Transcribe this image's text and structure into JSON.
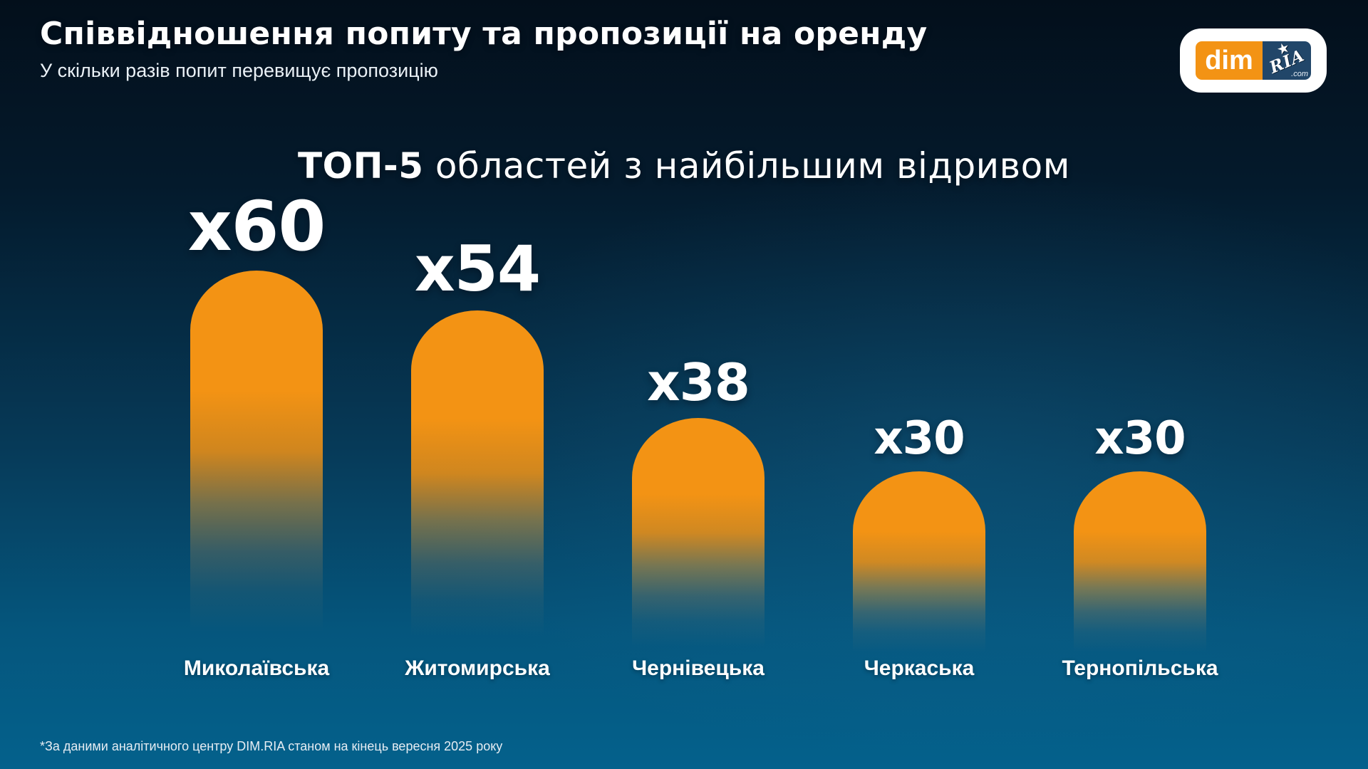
{
  "header": {
    "title": "Співвідношення попиту та пропозиції на оренду",
    "subtitle": "У скільки разів попит перевищує пропозицію"
  },
  "logo": {
    "dim": "dim",
    "ria": "RIA",
    "com": ".com",
    "star": "★"
  },
  "chart": {
    "title_highlight": "ТОП-5",
    "title_rest": " областей з найбільшим відривом"
  },
  "chart_data": {
    "type": "bar",
    "title": "ТОП-5 областей з найбільшим відривом",
    "categories": [
      "Миколаївська",
      "Житомирська",
      "Чернівецька",
      "Черкаська",
      "Тернопільська"
    ],
    "values": [
      60,
      54,
      38,
      30,
      30
    ],
    "value_labels": [
      "x60",
      "x54",
      "x38",
      "x30",
      "x30"
    ],
    "xlabel": "",
    "ylabel": "У скільки разів попит перевищує пропозицію",
    "ylim": [
      0,
      60
    ],
    "grid": false,
    "legend": false,
    "bar_color": "#F39314",
    "bar_style": "rounded-top, fading to background at bottom"
  },
  "footer": {
    "note": "*За даними аналітичного центру DIM.RIA станом на кінець вересня 2025 року"
  },
  "colors": {
    "orange": "#F39314",
    "background_top": "#030F1B",
    "background_bottom": "#04618C",
    "ria_navy": "#214669",
    "text": "#FFFFFF"
  }
}
